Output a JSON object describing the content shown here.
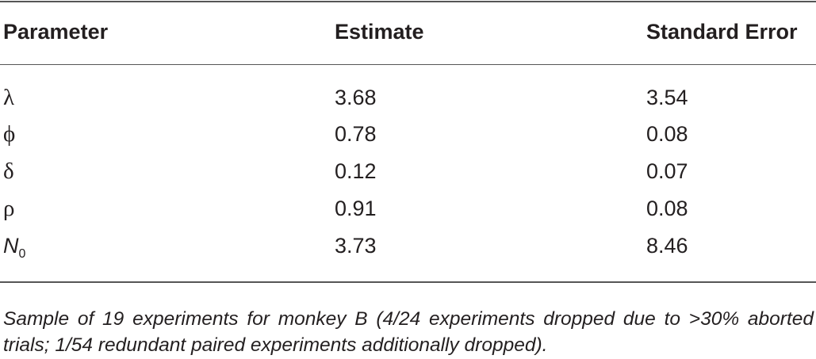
{
  "table": {
    "header": [
      "Parameter",
      "Estimate",
      "Standard Error"
    ],
    "rows": [
      [
        "λ",
        "3.68",
        "3.54"
      ],
      [
        "ϕ",
        "0.78",
        "0.08"
      ],
      [
        "δ",
        "0.12",
        "0.07"
      ],
      [
        "ρ",
        "0.91",
        "0.08"
      ],
      [
        {
          "base": "N",
          "sub": "0"
        },
        "3.73",
        "8.46"
      ]
    ],
    "caption": "Sample of 19 experiments for monkey B (4/24 experiments dropped due to >30% aborted trials; 1/54 redundant paired experiments additionally dropped)."
  }
}
